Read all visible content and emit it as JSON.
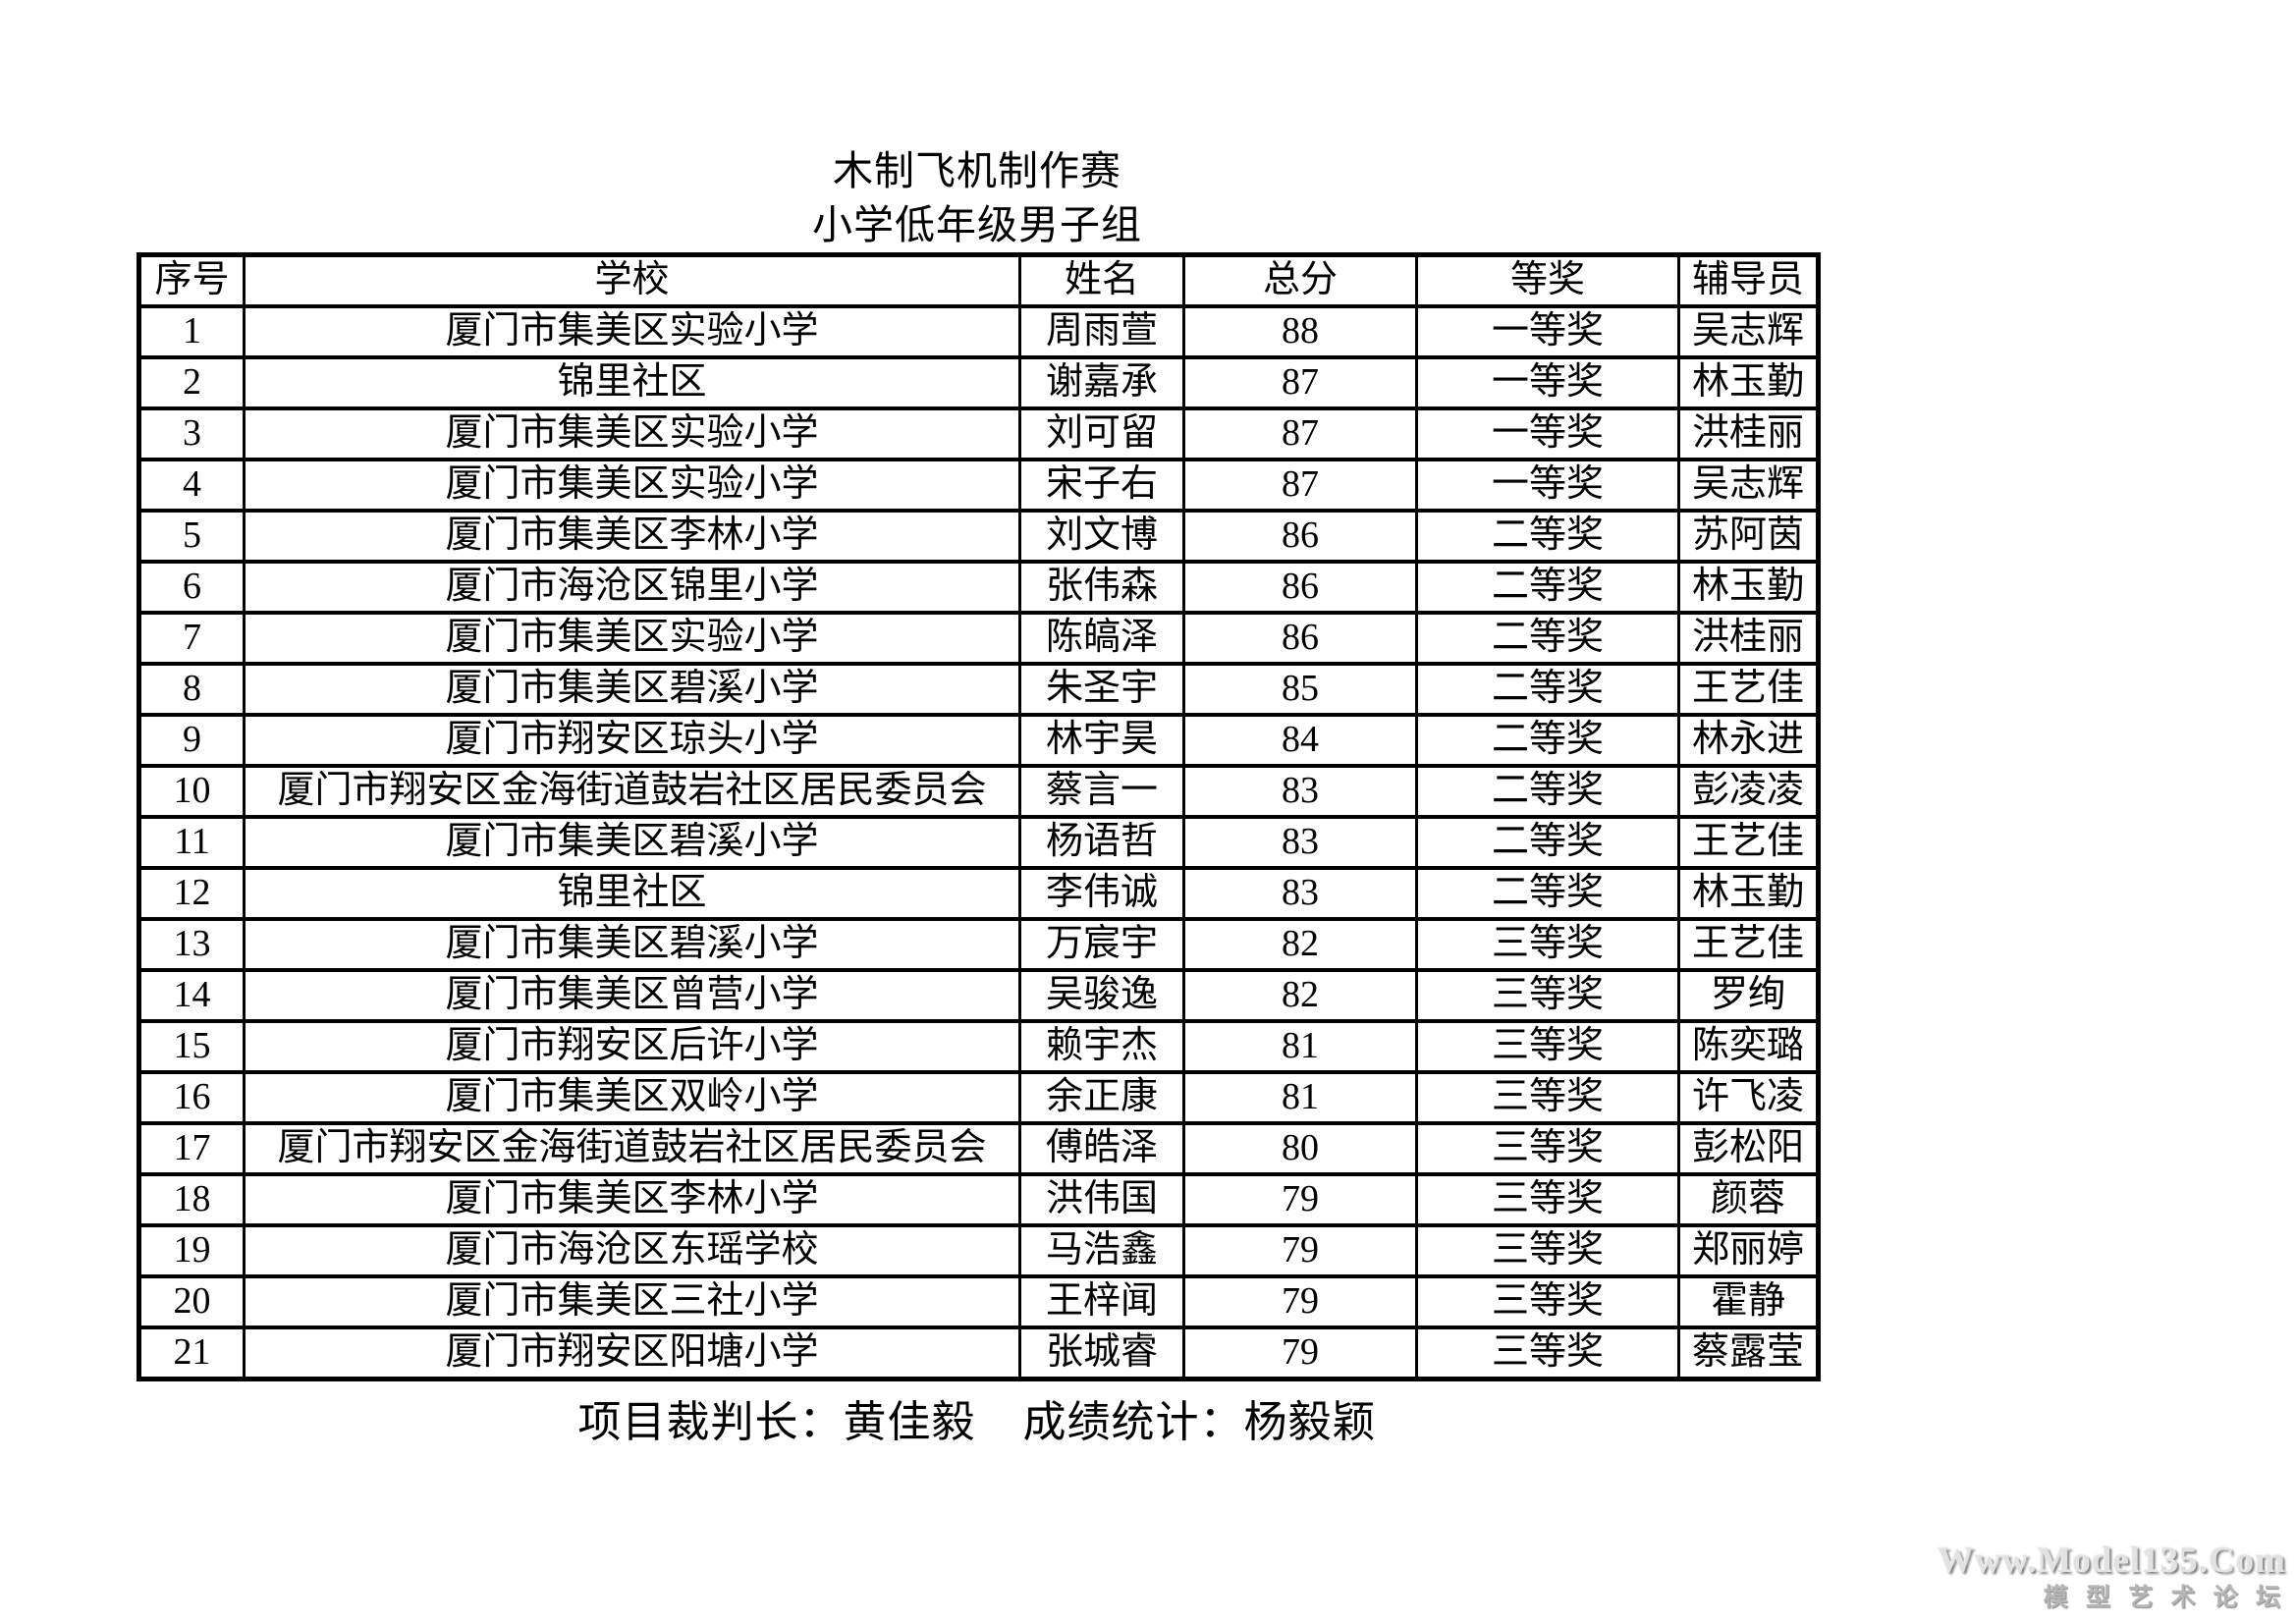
{
  "page": {
    "title": "木制飞机制作赛",
    "subtitle": "小学低年级男子组"
  },
  "table": {
    "headers": [
      "序号",
      "学校",
      "姓名",
      "总分",
      "等奖",
      "辅导员"
    ],
    "rows": [
      {
        "no": "1",
        "school": "厦门市集美区实验小学",
        "name": "周雨萱",
        "score": "88",
        "award": "一等奖",
        "coach": "吴志辉"
      },
      {
        "no": "2",
        "school": "锦里社区",
        "name": "谢嘉承",
        "score": "87",
        "award": "一等奖",
        "coach": "林玉勤"
      },
      {
        "no": "3",
        "school": "厦门市集美区实验小学",
        "name": "刘可留",
        "score": "87",
        "award": "一等奖",
        "coach": "洪桂丽"
      },
      {
        "no": "4",
        "school": "厦门市集美区实验小学",
        "name": "宋子右",
        "score": "87",
        "award": "一等奖",
        "coach": "吴志辉"
      },
      {
        "no": "5",
        "school": "厦门市集美区李林小学",
        "name": "刘文博",
        "score": "86",
        "award": "二等奖",
        "coach": "苏阿茵"
      },
      {
        "no": "6",
        "school": "厦门市海沧区锦里小学",
        "name": "张伟森",
        "score": "86",
        "award": "二等奖",
        "coach": "林玉勤"
      },
      {
        "no": "7",
        "school": "厦门市集美区实验小学",
        "name": "陈皜泽",
        "score": "86",
        "award": "二等奖",
        "coach": "洪桂丽"
      },
      {
        "no": "8",
        "school": "厦门市集美区碧溪小学",
        "name": "朱圣宇",
        "score": "85",
        "award": "二等奖",
        "coach": "王艺佳"
      },
      {
        "no": "9",
        "school": "厦门市翔安区琼头小学",
        "name": "林宇昊",
        "score": "84",
        "award": "二等奖",
        "coach": "林永进"
      },
      {
        "no": "10",
        "school": "厦门市翔安区金海街道鼓岩社区居民委员会",
        "name": "蔡言一",
        "score": "83",
        "award": "二等奖",
        "coach": "彭凌凌"
      },
      {
        "no": "11",
        "school": "厦门市集美区碧溪小学",
        "name": "杨语哲",
        "score": "83",
        "award": "二等奖",
        "coach": "王艺佳"
      },
      {
        "no": "12",
        "school": "锦里社区",
        "name": "李伟诚",
        "score": "83",
        "award": "二等奖",
        "coach": "林玉勤"
      },
      {
        "no": "13",
        "school": "厦门市集美区碧溪小学",
        "name": "万宸宇",
        "score": "82",
        "award": "三等奖",
        "coach": "王艺佳"
      },
      {
        "no": "14",
        "school": "厦门市集美区曾营小学",
        "name": "吴骏逸",
        "score": "82",
        "award": "三等奖",
        "coach": "罗绚"
      },
      {
        "no": "15",
        "school": "厦门市翔安区后许小学",
        "name": "赖宇杰",
        "score": "81",
        "award": "三等奖",
        "coach": "陈奕璐"
      },
      {
        "no": "16",
        "school": "厦门市集美区双岭小学",
        "name": "余正康",
        "score": "81",
        "award": "三等奖",
        "coach": "许飞凌"
      },
      {
        "no": "17",
        "school": "厦门市翔安区金海街道鼓岩社区居民委员会",
        "name": "傅皓泽",
        "score": "80",
        "award": "三等奖",
        "coach": "彭松阳"
      },
      {
        "no": "18",
        "school": "厦门市集美区李林小学",
        "name": "洪伟国",
        "score": "79",
        "award": "三等奖",
        "coach": "颜蓉"
      },
      {
        "no": "19",
        "school": "厦门市海沧区东瑶学校",
        "name": "马浩鑫",
        "score": "79",
        "award": "三等奖",
        "coach": "郑丽婷"
      },
      {
        "no": "20",
        "school": "厦门市集美区三社小学",
        "name": "王梓闻",
        "score": "79",
        "award": "三等奖",
        "coach": "霍静"
      },
      {
        "no": "21",
        "school": "厦门市翔安区阳塘小学",
        "name": "张城睿",
        "score": "79",
        "award": "三等奖",
        "coach": "蔡露莹"
      }
    ]
  },
  "footer": {
    "referee": "项目裁判长：黄佳毅",
    "statistician": "成绩统计：杨毅颖"
  },
  "watermark": {
    "line1": "Www.Model135.Com",
    "line2": "模 型 艺 术 论 坛"
  }
}
